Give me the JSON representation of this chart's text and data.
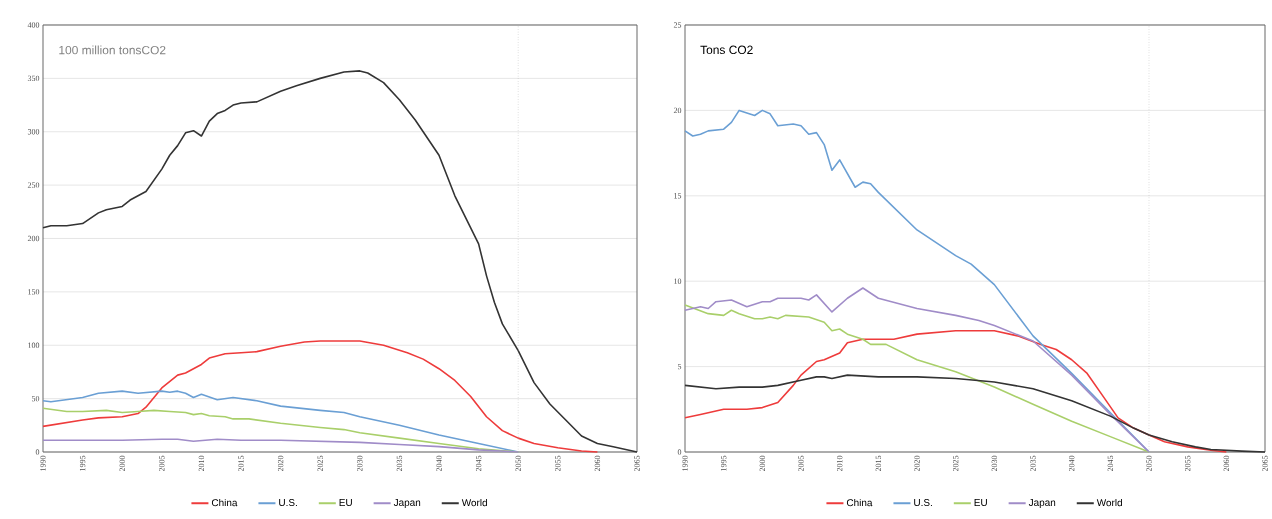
{
  "chart_data": [
    {
      "type": "line",
      "xlim": [
        1990,
        2065
      ],
      "xticks": [
        1990,
        1995,
        2000,
        2005,
        2010,
        2015,
        2020,
        2025,
        2030,
        2035,
        2040,
        2045,
        2050,
        2055,
        2060,
        2065
      ],
      "ylim": [
        0,
        400
      ],
      "yticks": [
        0,
        50,
        100,
        150,
        200,
        250,
        300,
        350,
        400
      ],
      "grid": "y",
      "legend": "bottom",
      "annotations": [
        "100 million tonsCO2"
      ],
      "ref_lines": [
        {
          "axis": "x",
          "value": 2050,
          "color": "#aaaaaa",
          "line_style": "dotted"
        }
      ],
      "series": [
        {
          "name": "China",
          "color": "#ee3b3b",
          "x": [
            1990,
            1995,
            1997,
            2000,
            2002,
            2003,
            2005,
            2007,
            2008,
            2010,
            2011,
            2013,
            2015,
            2017,
            2020,
            2023,
            2025,
            2030,
            2033,
            2036,
            2038,
            2040,
            2042,
            2044,
            2046,
            2048,
            2050,
            2052,
            2055,
            2058,
            2060
          ],
          "values": [
            24,
            30,
            32,
            33,
            36,
            42,
            60,
            72,
            74,
            82,
            88,
            92,
            93,
            94,
            99,
            103,
            104,
            104,
            100,
            93,
            87,
            78,
            67,
            52,
            33,
            20,
            13,
            8,
            4,
            1,
            0
          ]
        },
        {
          "name": "U.S.",
          "color": "#6a9fd4",
          "x": [
            1990,
            1991,
            1995,
            1997,
            2000,
            2002,
            2005,
            2006,
            2007,
            2008,
            2009,
            2010,
            2012,
            2014,
            2017,
            2020,
            2025,
            2028,
            2030,
            2035,
            2040,
            2045,
            2050
          ],
          "values": [
            48,
            47,
            51,
            55,
            57,
            55,
            57,
            56,
            57,
            55,
            51,
            54,
            49,
            51,
            48,
            43,
            39,
            37,
            33,
            25,
            16,
            8,
            0
          ]
        },
        {
          "name": "EU",
          "color": "#a9cf6a",
          "x": [
            1990,
            1993,
            1995,
            1998,
            2000,
            2002,
            2004,
            2006,
            2008,
            2009,
            2010,
            2011,
            2013,
            2014,
            2016,
            2020,
            2025,
            2028,
            2030,
            2035,
            2040,
            2045,
            2050
          ],
          "values": [
            41,
            38,
            38,
            39,
            37,
            38,
            39,
            38,
            37,
            35,
            36,
            34,
            33,
            31,
            31,
            27,
            23,
            21,
            18,
            13,
            8,
            3,
            0
          ]
        },
        {
          "name": "Japan",
          "color": "#a08cc8",
          "x": [
            1990,
            1995,
            2000,
            2005,
            2007,
            2009,
            2012,
            2015,
            2020,
            2025,
            2030,
            2035,
            2040,
            2045,
            2050
          ],
          "values": [
            11,
            11,
            11,
            12,
            12,
            10,
            12,
            11,
            11,
            10,
            9,
            7,
            5,
            2,
            0
          ]
        },
        {
          "name": "World",
          "color": "#333333",
          "x": [
            1990,
            1991,
            1993,
            1995,
            1997,
            1998,
            2000,
            2001,
            2003,
            2005,
            2006,
            2007,
            2008,
            2009,
            2010,
            2011,
            2012,
            2013,
            2014,
            2015,
            2017,
            2020,
            2022,
            2025,
            2028,
            2030,
            2031,
            2033,
            2035,
            2037,
            2040,
            2042,
            2044,
            2045,
            2046,
            2047,
            2048,
            2050,
            2052,
            2054,
            2056,
            2058,
            2060,
            2062,
            2065
          ],
          "values": [
            210,
            212,
            212,
            214,
            224,
            227,
            230,
            236,
            244,
            265,
            278,
            287,
            299,
            301,
            296,
            310,
            317,
            320,
            325,
            327,
            328,
            338,
            343,
            350,
            356,
            357,
            355,
            346,
            330,
            311,
            278,
            240,
            210,
            195,
            165,
            140,
            120,
            95,
            65,
            45,
            30,
            15,
            8,
            5,
            0
          ]
        }
      ]
    },
    {
      "type": "line",
      "xlim": [
        1990,
        2065
      ],
      "xticks": [
        1990,
        1995,
        2000,
        2005,
        2010,
        2015,
        2020,
        2025,
        2030,
        2035,
        2040,
        2045,
        2050,
        2055,
        2060,
        2065
      ],
      "ylim": [
        0,
        25
      ],
      "yticks": [
        0,
        5,
        10,
        15,
        20,
        25
      ],
      "grid": "y",
      "legend": "bottom",
      "annotations": [
        "Tons CO2"
      ],
      "ref_lines": [
        {
          "axis": "x",
          "value": 2050,
          "color": "#aaaaaa",
          "line_style": "dotted"
        }
      ],
      "series": [
        {
          "name": "China",
          "color": "#ee3b3b",
          "x": [
            1990,
            1992,
            1995,
            1998,
            2000,
            2002,
            2004,
            2005,
            2007,
            2008,
            2010,
            2011,
            2013,
            2017,
            2020,
            2025,
            2030,
            2033,
            2036,
            2038,
            2040,
            2042,
            2044,
            2046,
            2048,
            2050,
            2052,
            2055,
            2058,
            2060
          ],
          "values": [
            2.0,
            2.2,
            2.5,
            2.5,
            2.6,
            2.9,
            3.9,
            4.5,
            5.3,
            5.4,
            5.8,
            6.4,
            6.6,
            6.6,
            6.9,
            7.1,
            7.1,
            6.8,
            6.3,
            6.0,
            5.4,
            4.6,
            3.3,
            2.0,
            1.4,
            1.0,
            0.6,
            0.3,
            0.1,
            0
          ]
        },
        {
          "name": "U.S.",
          "color": "#6a9fd4",
          "x": [
            1990,
            1991,
            1992,
            1993,
            1995,
            1996,
            1997,
            1999,
            2000,
            2001,
            2002,
            2004,
            2005,
            2006,
            2007,
            2008,
            2009,
            2010,
            2012,
            2013,
            2014,
            2015,
            2020,
            2025,
            2027,
            2030,
            2035,
            2040,
            2045,
            2050
          ],
          "values": [
            18.8,
            18.5,
            18.6,
            18.8,
            18.9,
            19.3,
            20.0,
            19.7,
            20.0,
            19.8,
            19.1,
            19.2,
            19.1,
            18.6,
            18.7,
            18.0,
            16.5,
            17.1,
            15.5,
            15.8,
            15.7,
            15.2,
            13.0,
            11.5,
            11.0,
            9.8,
            6.8,
            4.6,
            2.3,
            0
          ]
        },
        {
          "name": "EU",
          "color": "#a9cf6a",
          "x": [
            1990,
            1993,
            1995,
            1996,
            1997,
            1999,
            2000,
            2001,
            2002,
            2003,
            2006,
            2008,
            2009,
            2010,
            2011,
            2013,
            2014,
            2016,
            2020,
            2025,
            2030,
            2035,
            2040,
            2045,
            2050
          ],
          "values": [
            8.6,
            8.1,
            8.0,
            8.3,
            8.1,
            7.8,
            7.8,
            7.9,
            7.8,
            8.0,
            7.9,
            7.6,
            7.1,
            7.2,
            6.9,
            6.6,
            6.3,
            6.3,
            5.4,
            4.7,
            3.8,
            2.8,
            1.8,
            0.9,
            0
          ]
        },
        {
          "name": "Japan",
          "color": "#a08cc8",
          "x": [
            1990,
            1992,
            1993,
            1994,
            1996,
            1998,
            2000,
            2001,
            2002,
            2005,
            2006,
            2007,
            2009,
            2011,
            2013,
            2015,
            2020,
            2025,
            2028,
            2030,
            2035,
            2040,
            2045,
            2050
          ],
          "values": [
            8.3,
            8.5,
            8.4,
            8.8,
            8.9,
            8.5,
            8.8,
            8.8,
            9.0,
            9.0,
            8.9,
            9.2,
            8.2,
            9.0,
            9.6,
            9.0,
            8.4,
            8.0,
            7.7,
            7.4,
            6.5,
            4.5,
            2.2,
            0
          ]
        },
        {
          "name": "World",
          "color": "#333333",
          "x": [
            1990,
            1994,
            1997,
            2000,
            2002,
            2005,
            2007,
            2008,
            2009,
            2011,
            2015,
            2020,
            2025,
            2030,
            2035,
            2040,
            2045,
            2048,
            2050,
            2053,
            2056,
            2058,
            2062,
            2065
          ],
          "values": [
            3.9,
            3.7,
            3.8,
            3.8,
            3.9,
            4.2,
            4.4,
            4.4,
            4.3,
            4.5,
            4.4,
            4.4,
            4.3,
            4.1,
            3.7,
            3.0,
            2.1,
            1.4,
            1.0,
            0.6,
            0.3,
            0.15,
            0.05,
            0
          ]
        }
      ]
    }
  ]
}
